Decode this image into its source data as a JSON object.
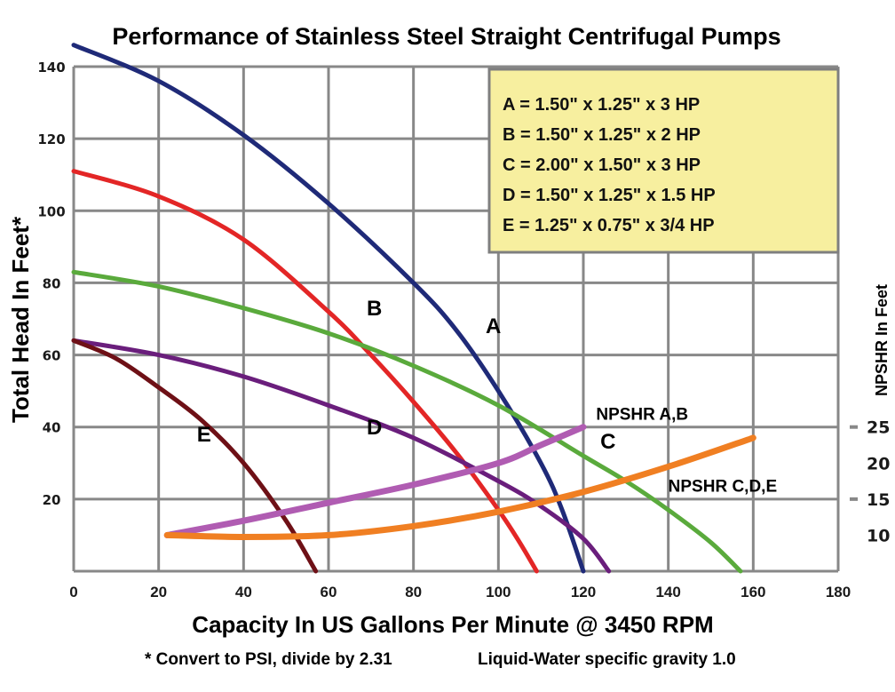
{
  "chart_data": {
    "type": "line",
    "title": "Performance of Stainless Steel Straight Centrifugal Pumps",
    "xlabel": "Capacity In US Gallons Per Minute @ 3450 RPM",
    "ylabel": "Total Head In Feet*",
    "y2label": "NPSHR In Feet",
    "xlim": [
      0,
      180
    ],
    "ylim": [
      0,
      140
    ],
    "grid": true,
    "x_ticks": [
      "0",
      "20",
      "40",
      "60",
      "80",
      "100",
      "120",
      "140",
      "160",
      "180"
    ],
    "y_ticks": [
      "20",
      "40",
      "60",
      "80",
      "100",
      "120",
      "140"
    ],
    "y2_ticks": [
      {
        "label": "25",
        "at_head": 40,
        "marked": true
      },
      {
        "label": "20",
        "at_head": 30,
        "marked": false
      },
      {
        "label": "15",
        "at_head": 20,
        "marked": true
      },
      {
        "label": "10",
        "at_head": 10,
        "marked": false
      }
    ],
    "legend": {
      "placement": "top-right",
      "entries": [
        "A = 1.50\" x 1.25\" x 3 HP",
        "B = 1.50\" x 1.25\" x 2 HP",
        "C = 2.00\" x 1.50\" x 3 HP",
        "D = 1.50\" x 1.25\" x 1.5 HP",
        "E = 1.25\" x 0.75\"  x 3/4 HP"
      ]
    },
    "series": [
      {
        "name": "A",
        "color": "#1f2a78",
        "x": [
          0,
          20,
          40,
          60,
          80,
          90,
          100,
          110,
          115,
          120
        ],
        "y": [
          146,
          136,
          121,
          102,
          80,
          67,
          50,
          30,
          17,
          0
        ],
        "label_pos": [
          97,
          66
        ]
      },
      {
        "name": "B",
        "color": "#e32626",
        "x": [
          0,
          20,
          40,
          60,
          70,
          80,
          90,
          100,
          105,
          109
        ],
        "y": [
          111,
          104,
          92,
          72,
          60,
          47,
          33,
          17,
          8,
          0
        ],
        "label_pos": [
          69,
          71
        ]
      },
      {
        "name": "C",
        "color": "#5aaa3c",
        "x": [
          0,
          20,
          40,
          60,
          80,
          100,
          120,
          130,
          140,
          150,
          157
        ],
        "y": [
          83,
          79,
          73,
          66,
          57,
          46,
          32,
          25,
          17,
          8,
          0
        ],
        "label_pos": [
          124,
          34
        ]
      },
      {
        "name": "D",
        "color": "#6a1e7c",
        "x": [
          0,
          20,
          40,
          60,
          80,
          100,
          110,
          120,
          126
        ],
        "y": [
          64,
          60,
          54,
          46,
          37,
          25,
          18,
          9,
          0
        ],
        "label_pos": [
          69,
          38
        ]
      },
      {
        "name": "E",
        "color": "#6e1016",
        "x": [
          0,
          10,
          20,
          30,
          40,
          50,
          57
        ],
        "y": [
          64,
          59,
          51,
          42,
          30,
          14,
          0
        ],
        "label_pos": [
          29,
          36
        ]
      },
      {
        "name": "NPSHR A,B",
        "color": "#b05cb2",
        "x": [
          22,
          40,
          60,
          80,
          100,
          110,
          120
        ],
        "y": [
          10,
          14,
          19,
          24,
          30,
          35,
          40
        ],
        "label_pos": [
          123,
          42
        ]
      },
      {
        "name": "NPSHR C,D,E",
        "color": "#f07f22",
        "x": [
          22,
          40,
          60,
          80,
          100,
          120,
          140,
          160
        ],
        "y": [
          10,
          9.5,
          10,
          12.5,
          16.5,
          22,
          29,
          37
        ],
        "label_pos": [
          140,
          22
        ]
      }
    ],
    "footnotes": [
      "* Convert to PSI, divide by 2.31",
      "Liquid-Water specific gravity 1.0"
    ]
  }
}
